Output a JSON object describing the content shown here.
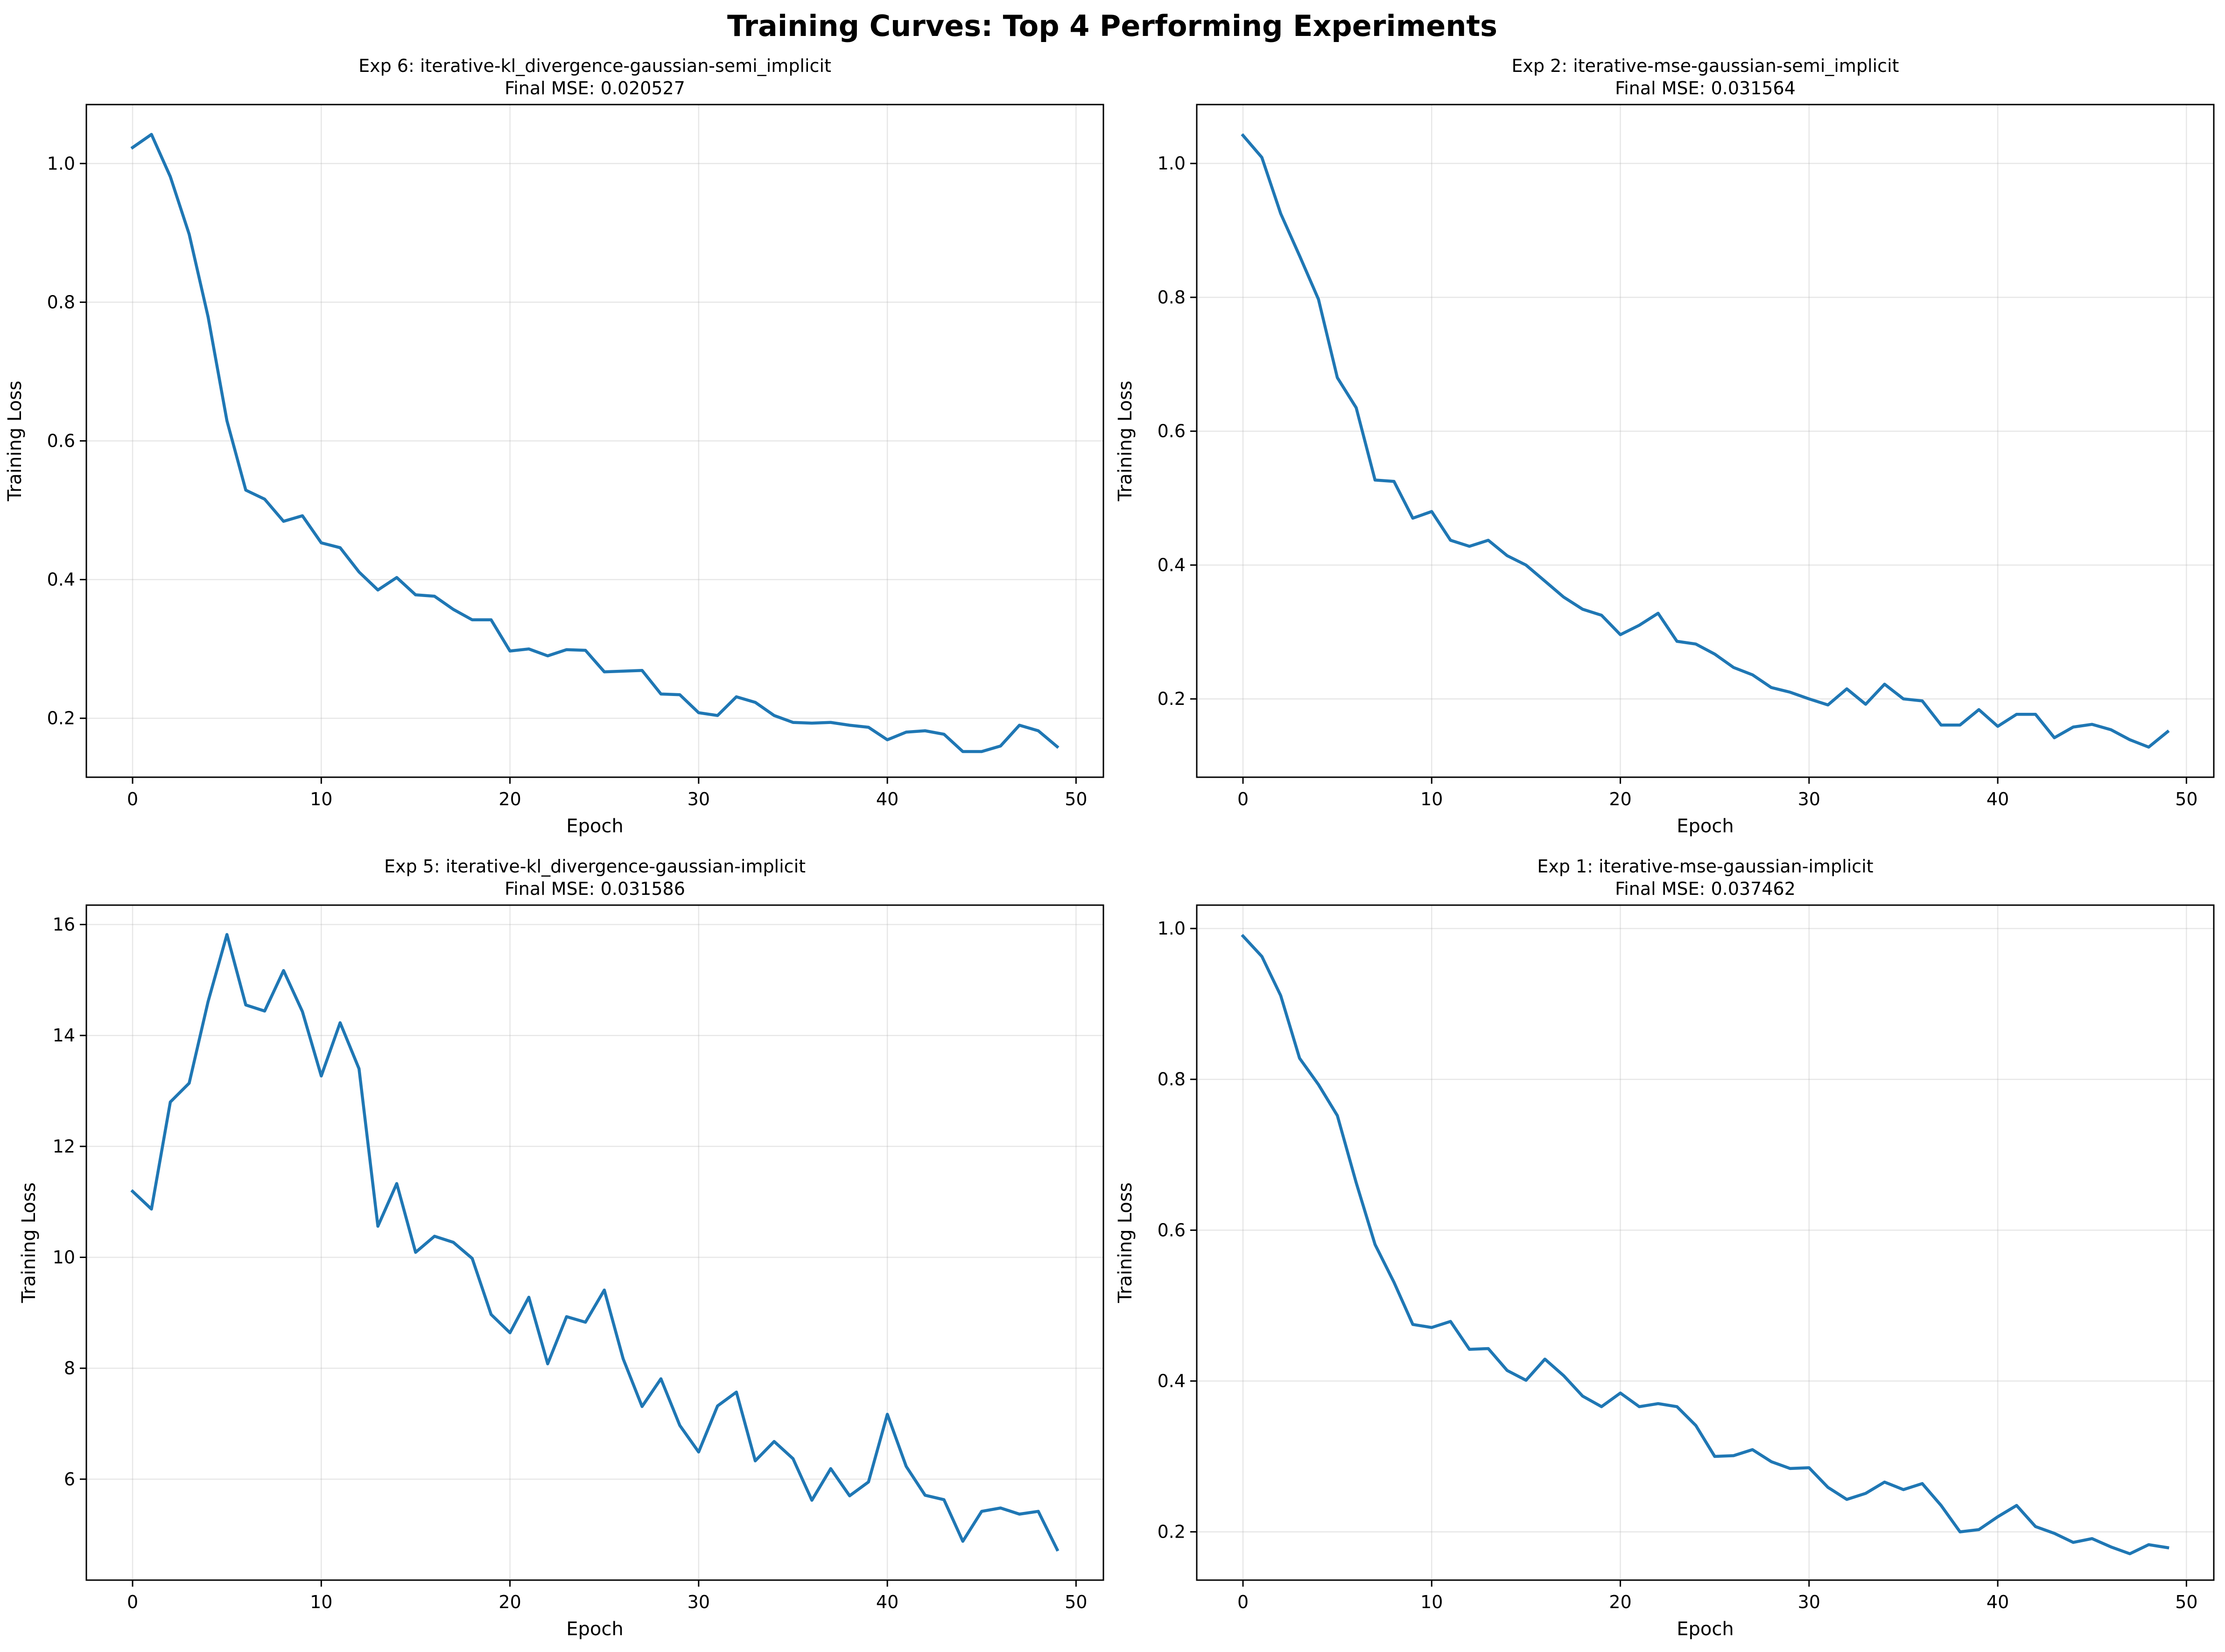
{
  "figure": {
    "title": "Training Curves: Top 4 Performing Experiments"
  },
  "colors": {
    "series": "#1f77b4"
  },
  "chart_data": [
    {
      "type": "line",
      "title": "Exp 6: iterative-kl_divergence-gaussian-semi_implicit",
      "subtitle": "Final MSE: 0.020527",
      "xlabel": "Epoch",
      "ylabel": "Training Loss",
      "xlim": [
        -2.45,
        51.45
      ],
      "ylim": [
        0.115,
        1.085
      ],
      "xticks": [
        0,
        10,
        20,
        30,
        40,
        50
      ],
      "yticks": [
        0.2,
        0.4,
        0.6,
        0.8,
        1.0
      ],
      "ytick_labels": [
        "0.2",
        "0.4",
        "0.6",
        "0.8",
        "1.0"
      ],
      "grid": true,
      "x": [
        0,
        1,
        2,
        3,
        4,
        5,
        6,
        7,
        8,
        9,
        10,
        11,
        12,
        13,
        14,
        15,
        16,
        17,
        18,
        19,
        20,
        21,
        22,
        23,
        24,
        25,
        26,
        27,
        28,
        29,
        30,
        31,
        32,
        33,
        34,
        35,
        36,
        37,
        38,
        39,
        40,
        41,
        42,
        43,
        44,
        45,
        46,
        47,
        48,
        49
      ],
      "values": [
        1.023,
        1.042,
        0.981,
        0.898,
        0.779,
        0.629,
        0.529,
        0.516,
        0.484,
        0.492,
        0.453,
        0.446,
        0.411,
        0.385,
        0.403,
        0.378,
        0.376,
        0.357,
        0.342,
        0.342,
        0.297,
        0.3,
        0.29,
        0.299,
        0.298,
        0.267,
        0.268,
        0.269,
        0.235,
        0.234,
        0.208,
        0.204,
        0.231,
        0.223,
        0.204,
        0.194,
        0.193,
        0.194,
        0.19,
        0.187,
        0.169,
        0.18,
        0.182,
        0.177,
        0.152,
        0.152,
        0.16,
        0.19,
        0.182,
        0.159
      ]
    },
    {
      "type": "line",
      "title": "Exp 2: iterative-mse-gaussian-semi_implicit",
      "subtitle": "Final MSE: 0.031564",
      "xlabel": "Epoch",
      "ylabel": "Training Loss",
      "xlim": [
        -2.45,
        51.45
      ],
      "ylim": [
        0.083,
        1.088
      ],
      "xticks": [
        0,
        10,
        20,
        30,
        40,
        50
      ],
      "yticks": [
        0.2,
        0.4,
        0.6,
        0.8,
        1.0
      ],
      "ytick_labels": [
        "0.2",
        "0.4",
        "0.6",
        "0.8",
        "1.0"
      ],
      "grid": true,
      "x": [
        0,
        1,
        2,
        3,
        4,
        5,
        6,
        7,
        8,
        9,
        10,
        11,
        12,
        13,
        14,
        15,
        16,
        17,
        18,
        19,
        20,
        21,
        22,
        23,
        24,
        25,
        26,
        27,
        28,
        29,
        30,
        31,
        32,
        33,
        34,
        35,
        36,
        37,
        38,
        39,
        40,
        41,
        42,
        43,
        44,
        45,
        46,
        47,
        48,
        49
      ],
      "values": [
        1.042,
        1.009,
        0.925,
        0.862,
        0.797,
        0.68,
        0.635,
        0.527,
        0.525,
        0.47,
        0.48,
        0.437,
        0.428,
        0.437,
        0.414,
        0.4,
        0.376,
        0.352,
        0.334,
        0.325,
        0.296,
        0.31,
        0.328,
        0.286,
        0.282,
        0.267,
        0.247,
        0.236,
        0.217,
        0.21,
        0.2,
        0.191,
        0.215,
        0.192,
        0.222,
        0.2,
        0.197,
        0.161,
        0.161,
        0.184,
        0.159,
        0.177,
        0.177,
        0.142,
        0.158,
        0.162,
        0.154,
        0.139,
        0.128,
        0.151
      ]
    },
    {
      "type": "line",
      "title": "Exp 5: iterative-kl_divergence-gaussian-implicit",
      "subtitle": "Final MSE: 0.031586",
      "xlabel": "Epoch",
      "ylabel": "Training Loss",
      "xlim": [
        -2.45,
        51.45
      ],
      "ylim": [
        4.18,
        16.35
      ],
      "xticks": [
        0,
        10,
        20,
        30,
        40,
        50
      ],
      "yticks": [
        6,
        8,
        10,
        12,
        14,
        16
      ],
      "ytick_labels": [
        "6",
        "8",
        "10",
        "12",
        "14",
        "16"
      ],
      "grid": true,
      "x": [
        0,
        1,
        2,
        3,
        4,
        5,
        6,
        7,
        8,
        9,
        10,
        11,
        12,
        13,
        14,
        15,
        16,
        17,
        18,
        19,
        20,
        21,
        22,
        23,
        24,
        25,
        26,
        27,
        28,
        29,
        30,
        31,
        32,
        33,
        34,
        35,
        36,
        37,
        38,
        39,
        40,
        41,
        42,
        43,
        44,
        45,
        46,
        47,
        48,
        49
      ],
      "values": [
        11.19,
        10.87,
        12.8,
        13.14,
        14.61,
        15.82,
        14.55,
        14.44,
        15.17,
        14.43,
        13.27,
        14.23,
        13.4,
        10.56,
        11.33,
        10.09,
        10.38,
        10.27,
        9.98,
        8.97,
        8.64,
        9.28,
        8.08,
        8.93,
        8.83,
        9.41,
        8.17,
        7.31,
        7.81,
        6.97,
        6.49,
        7.32,
        7.57,
        6.33,
        6.68,
        6.37,
        5.62,
        6.19,
        5.7,
        5.95,
        7.17,
        6.23,
        5.71,
        5.63,
        4.88,
        5.42,
        5.48,
        5.37,
        5.42,
        4.73
      ]
    },
    {
      "type": "line",
      "title": "Exp 1: iterative-mse-gaussian-implicit",
      "subtitle": "Final MSE: 0.037462",
      "xlabel": "Epoch",
      "ylabel": "Training Loss",
      "xlim": [
        -2.45,
        51.45
      ],
      "ylim": [
        0.136,
        1.031
      ],
      "xticks": [
        0,
        10,
        20,
        30,
        40,
        50
      ],
      "yticks": [
        0.2,
        0.4,
        0.6,
        0.8,
        1.0
      ],
      "ytick_labels": [
        "0.2",
        "0.4",
        "0.6",
        "0.8",
        "1.0"
      ],
      "grid": true,
      "x": [
        0,
        1,
        2,
        3,
        4,
        5,
        6,
        7,
        8,
        9,
        10,
        11,
        12,
        13,
        14,
        15,
        16,
        17,
        18,
        19,
        20,
        21,
        22,
        23,
        24,
        25,
        26,
        27,
        28,
        29,
        30,
        31,
        32,
        33,
        34,
        35,
        36,
        37,
        38,
        39,
        40,
        41,
        42,
        43,
        44,
        45,
        46,
        47,
        48,
        49
      ],
      "values": [
        0.99,
        0.963,
        0.911,
        0.828,
        0.793,
        0.752,
        0.663,
        0.581,
        0.531,
        0.475,
        0.471,
        0.479,
        0.442,
        0.443,
        0.414,
        0.401,
        0.429,
        0.407,
        0.38,
        0.366,
        0.384,
        0.366,
        0.37,
        0.366,
        0.341,
        0.3,
        0.301,
        0.309,
        0.293,
        0.284,
        0.285,
        0.259,
        0.243,
        0.251,
        0.266,
        0.256,
        0.264,
        0.235,
        0.2,
        0.203,
        0.22,
        0.235,
        0.207,
        0.198,
        0.186,
        0.191,
        0.18,
        0.171,
        0.183,
        0.179
      ]
    }
  ]
}
